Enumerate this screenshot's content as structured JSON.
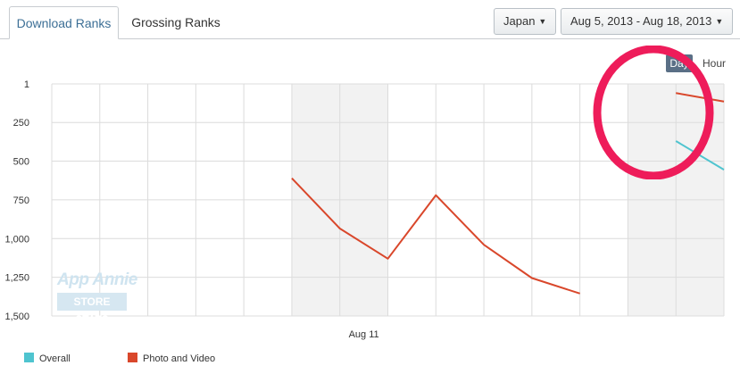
{
  "tabs": [
    {
      "label": "Download Ranks",
      "active": true
    },
    {
      "label": "Grossing Ranks",
      "active": false
    }
  ],
  "filters": {
    "country": "Japan",
    "date_range": "Aug 5, 2013 - Aug 18, 2013"
  },
  "granularity": {
    "day": "Day",
    "hour": "Hour",
    "selected": "Day"
  },
  "watermark": {
    "line1": "App Annie",
    "line2": "STORE STATS"
  },
  "colors": {
    "overall": "#4fc4cf",
    "photo_video": "#d9472b",
    "annotation": "#ee1c5a",
    "weekend_band": "#f2f2f2"
  },
  "chart_data": {
    "type": "line",
    "x": [
      "2013-08-05",
      "2013-08-06",
      "2013-08-07",
      "2013-08-08",
      "2013-08-09",
      "2013-08-10",
      "2013-08-11",
      "2013-08-12",
      "2013-08-13",
      "2013-08-14",
      "2013-08-15",
      "2013-08-16",
      "2013-08-17",
      "2013-08-18",
      "2013-08-19"
    ],
    "x_tick_labels": [
      {
        "date": "2013-08-11",
        "label": "Aug 11"
      }
    ],
    "weekend_bands": [
      [
        "2013-08-10",
        "2013-08-12"
      ],
      [
        "2013-08-17",
        "2013-08-19"
      ]
    ],
    "y_ticks": [
      {
        "value": 1,
        "label": "1"
      },
      {
        "value": 250,
        "label": "250"
      },
      {
        "value": 500,
        "label": "500"
      },
      {
        "value": 750,
        "label": "750"
      },
      {
        "value": 1000,
        "label": "1,000"
      },
      {
        "value": 1250,
        "label": "1,250"
      },
      {
        "value": 1500,
        "label": "1,500"
      }
    ],
    "ylim": [
      1,
      1500
    ],
    "y_reversed": true,
    "grid": true,
    "legend_position": "bottom-left",
    "series": [
      {
        "name": "Overall",
        "color": "#4fc4cf",
        "points": [
          [
            "2013-08-18",
            370
          ],
          [
            "2013-08-19",
            555
          ]
        ]
      },
      {
        "name": "Photo and Video",
        "color": "#d9472b",
        "points": [
          [
            "2013-08-10",
            610
          ],
          [
            "2013-08-11",
            935
          ],
          [
            "2013-08-12",
            1130
          ],
          [
            "2013-08-13",
            720
          ],
          [
            "2013-08-14",
            1040
          ],
          [
            "2013-08-15",
            1255
          ],
          [
            "2013-08-16",
            1355
          ],
          [
            "2013-08-18",
            60
          ],
          [
            "2013-08-19",
            115
          ]
        ],
        "segments": [
          [
            0,
            6
          ],
          [
            7,
            8
          ]
        ]
      }
    ]
  }
}
